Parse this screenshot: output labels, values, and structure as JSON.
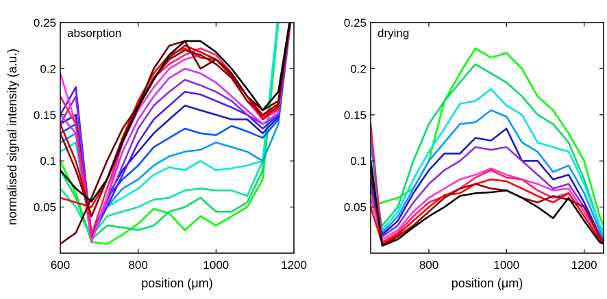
{
  "figure": {
    "ylabel": "normalised signal intensity (a.u.)"
  },
  "chart_data": [
    {
      "type": "line",
      "title": "absorption",
      "xlabel": "position (μm)",
      "ylabel": "normalised signal intensity (a.u.)",
      "xlim": [
        600,
        1200
      ],
      "ylim": [
        0,
        0.25
      ],
      "xticks": [
        600,
        800,
        1000,
        1200
      ],
      "xtick_labels": [
        "600",
        "800",
        "1000",
        "1200"
      ],
      "yticks": [
        0.05,
        0.1,
        0.15,
        0.2,
        0.25
      ],
      "ytick_labels": [
        "0.05",
        "0.1",
        "0.15",
        "0.2",
        "0.25"
      ],
      "grid": false,
      "legend": "none",
      "x": [
        600,
        640,
        680,
        720,
        760,
        800,
        840,
        880,
        920,
        960,
        1000,
        1040,
        1080,
        1120,
        1160,
        1200
      ],
      "series": [
        {
          "color": "#00ff00",
          "values": [
            0.1,
            0.065,
            0.012,
            0.01,
            0.02,
            0.032,
            0.048,
            0.043,
            0.025,
            0.04,
            0.03,
            0.04,
            0.05,
            0.08,
            0.25,
            0.28
          ]
        },
        {
          "color": "#00dd66",
          "values": [
            0.09,
            0.06,
            0.015,
            0.03,
            0.028,
            0.025,
            0.03,
            0.045,
            0.05,
            0.06,
            0.045,
            0.045,
            0.055,
            0.09,
            0.26,
            0.29
          ]
        },
        {
          "color": "#00e6a0",
          "values": [
            0.07,
            0.05,
            0.018,
            0.04,
            0.045,
            0.05,
            0.058,
            0.06,
            0.068,
            0.07,
            0.068,
            0.068,
            0.062,
            0.1,
            0.25,
            0.28
          ]
        },
        {
          "color": "#00e6e6",
          "values": [
            0.11,
            0.12,
            0.018,
            0.05,
            0.06,
            0.07,
            0.085,
            0.093,
            0.09,
            0.1,
            0.09,
            0.092,
            0.095,
            0.1,
            0.26,
            0.28
          ]
        },
        {
          "color": "#0099ff",
          "values": [
            0.12,
            0.13,
            0.016,
            0.05,
            0.07,
            0.08,
            0.095,
            0.105,
            0.11,
            0.112,
            0.12,
            0.115,
            0.11,
            0.1,
            0.14,
            0.28
          ]
        },
        {
          "color": "#0055ff",
          "values": [
            0.13,
            0.14,
            0.016,
            0.06,
            0.08,
            0.095,
            0.115,
            0.125,
            0.135,
            0.13,
            0.128,
            0.138,
            0.132,
            0.125,
            0.145,
            0.28
          ]
        },
        {
          "color": "#1a1acc",
          "values": [
            0.14,
            0.15,
            0.015,
            0.06,
            0.09,
            0.11,
            0.13,
            0.145,
            0.16,
            0.155,
            0.15,
            0.145,
            0.145,
            0.13,
            0.148,
            0.28
          ]
        },
        {
          "color": "#4d1aff",
          "values": [
            0.15,
            0.18,
            0.02,
            0.05,
            0.085,
            0.12,
            0.145,
            0.16,
            0.175,
            0.172,
            0.165,
            0.158,
            0.15,
            0.135,
            0.15,
            0.28
          ]
        },
        {
          "color": "#8a2be2",
          "values": [
            0.14,
            0.17,
            0.022,
            0.055,
            0.095,
            0.135,
            0.16,
            0.175,
            0.188,
            0.182,
            0.175,
            0.165,
            0.15,
            0.14,
            0.15,
            0.28
          ]
        },
        {
          "color": "#cc33ff",
          "values": [
            0.15,
            0.13,
            0.012,
            0.06,
            0.11,
            0.145,
            0.17,
            0.19,
            0.2,
            0.195,
            0.185,
            0.17,
            0.155,
            0.14,
            0.152,
            0.28
          ]
        },
        {
          "color": "#ff33cc",
          "values": [
            0.195,
            0.14,
            0.012,
            0.06,
            0.12,
            0.155,
            0.18,
            0.2,
            0.21,
            0.215,
            0.205,
            0.19,
            0.165,
            0.145,
            0.155,
            0.28
          ]
        },
        {
          "color": "#ff1a66",
          "values": [
            0.17,
            0.14,
            0.02,
            0.07,
            0.12,
            0.16,
            0.19,
            0.205,
            0.215,
            0.222,
            0.215,
            0.195,
            0.17,
            0.148,
            0.156,
            0.28
          ]
        },
        {
          "color": "#ff0000",
          "values": [
            0.06,
            0.055,
            0.05,
            0.08,
            0.125,
            0.165,
            0.195,
            0.215,
            0.222,
            0.212,
            0.21,
            0.195,
            0.17,
            0.15,
            0.158,
            0.28
          ]
        },
        {
          "color": "#cc0000",
          "values": [
            0.14,
            0.1,
            0.04,
            0.08,
            0.12,
            0.16,
            0.19,
            0.212,
            0.225,
            0.218,
            0.21,
            0.192,
            0.17,
            0.145,
            0.16,
            0.28
          ]
        },
        {
          "color": "#990000",
          "values": [
            0.13,
            0.09,
            0.04,
            0.08,
            0.125,
            0.16,
            0.19,
            0.21,
            0.22,
            0.215,
            0.205,
            0.19,
            0.165,
            0.15,
            0.162,
            0.28
          ]
        },
        {
          "color": "#660000",
          "values": [
            0.01,
            0.022,
            0.06,
            0.1,
            0.135,
            0.16,
            0.2,
            0.225,
            0.23,
            0.2,
            0.21,
            0.195,
            0.17,
            0.155,
            0.165,
            0.28
          ]
        },
        {
          "color": "#000000",
          "values": [
            0.09,
            0.07,
            0.056,
            0.08,
            0.12,
            0.158,
            0.188,
            0.215,
            0.23,
            0.23,
            0.218,
            0.2,
            0.178,
            0.155,
            0.175,
            0.28
          ]
        }
      ]
    },
    {
      "type": "line",
      "title": "drying",
      "xlabel": "position (μm)",
      "ylabel": "",
      "xlim": [
        650,
        1250
      ],
      "ylim": [
        0,
        0.25
      ],
      "xticks": [
        800,
        1000,
        1200
      ],
      "xtick_labels": [
        "800",
        "1000",
        "1200"
      ],
      "yticks": [
        0.05,
        0.1,
        0.15,
        0.2,
        0.25
      ],
      "ytick_labels": [
        "0.05",
        "0.1",
        "0.15",
        "0.2",
        "0.25"
      ],
      "grid": false,
      "legend": "none",
      "x": [
        650,
        680,
        720,
        760,
        800,
        840,
        880,
        920,
        960,
        1000,
        1040,
        1080,
        1120,
        1160,
        1200,
        1240,
        1250
      ],
      "series": [
        {
          "color": "#00ff00",
          "values": [
            0.05,
            0.055,
            0.06,
            0.07,
            0.1,
            0.165,
            0.195,
            0.222,
            0.212,
            0.217,
            0.2,
            0.17,
            0.155,
            0.13,
            0.1,
            0.04,
            0.03
          ]
        },
        {
          "color": "#00dd66",
          "values": [
            0.06,
            0.03,
            0.05,
            0.1,
            0.14,
            0.165,
            0.185,
            0.205,
            0.195,
            0.185,
            0.17,
            0.15,
            0.14,
            0.12,
            0.08,
            0.03,
            0.025
          ]
        },
        {
          "color": "#00e6e6",
          "values": [
            0.1,
            0.025,
            0.045,
            0.08,
            0.11,
            0.135,
            0.162,
            0.165,
            0.178,
            0.16,
            0.15,
            0.12,
            0.115,
            0.11,
            0.075,
            0.03,
            0.02
          ]
        },
        {
          "color": "#0099ff",
          "values": [
            0.12,
            0.022,
            0.04,
            0.07,
            0.1,
            0.12,
            0.14,
            0.142,
            0.155,
            0.148,
            0.12,
            0.11,
            0.088,
            0.095,
            0.065,
            0.025,
            0.015
          ]
        },
        {
          "color": "#1a1acc",
          "values": [
            0.08,
            0.02,
            0.035,
            0.065,
            0.09,
            0.108,
            0.108,
            0.125,
            0.122,
            0.135,
            0.1,
            0.1,
            0.08,
            0.085,
            0.055,
            0.02,
            0.012
          ]
        },
        {
          "color": "#8a2be2",
          "values": [
            0.07,
            0.018,
            0.03,
            0.055,
            0.075,
            0.09,
            0.1,
            0.115,
            0.112,
            0.115,
            0.1,
            0.085,
            0.07,
            0.075,
            0.05,
            0.02,
            0.012
          ]
        },
        {
          "color": "#ff33cc",
          "values": [
            0.06,
            0.015,
            0.025,
            0.045,
            0.06,
            0.07,
            0.08,
            0.085,
            0.092,
            0.085,
            0.08,
            0.075,
            0.068,
            0.07,
            0.045,
            0.018,
            0.012
          ]
        },
        {
          "color": "#ff1a66",
          "values": [
            0.14,
            0.012,
            0.022,
            0.04,
            0.055,
            0.062,
            0.07,
            0.082,
            0.09,
            0.082,
            0.08,
            0.068,
            0.06,
            0.065,
            0.04,
            0.015,
            0.01
          ]
        },
        {
          "color": "#ff0000",
          "values": [
            0.05,
            0.01,
            0.02,
            0.035,
            0.05,
            0.063,
            0.065,
            0.075,
            0.08,
            0.078,
            0.07,
            0.062,
            0.055,
            0.065,
            0.04,
            0.015,
            0.01
          ]
        },
        {
          "color": "#990000",
          "values": [
            0.09,
            0.008,
            0.018,
            0.03,
            0.045,
            0.06,
            0.07,
            0.075,
            0.07,
            0.068,
            0.06,
            0.055,
            0.062,
            0.058,
            0.05,
            0.018,
            0.012
          ]
        },
        {
          "color": "#000000",
          "values": [
            0.1,
            0.008,
            0.015,
            0.028,
            0.04,
            0.05,
            0.062,
            0.065,
            0.066,
            0.068,
            0.06,
            0.05,
            0.038,
            0.06,
            0.035,
            0.012,
            0.01
          ]
        }
      ]
    }
  ]
}
